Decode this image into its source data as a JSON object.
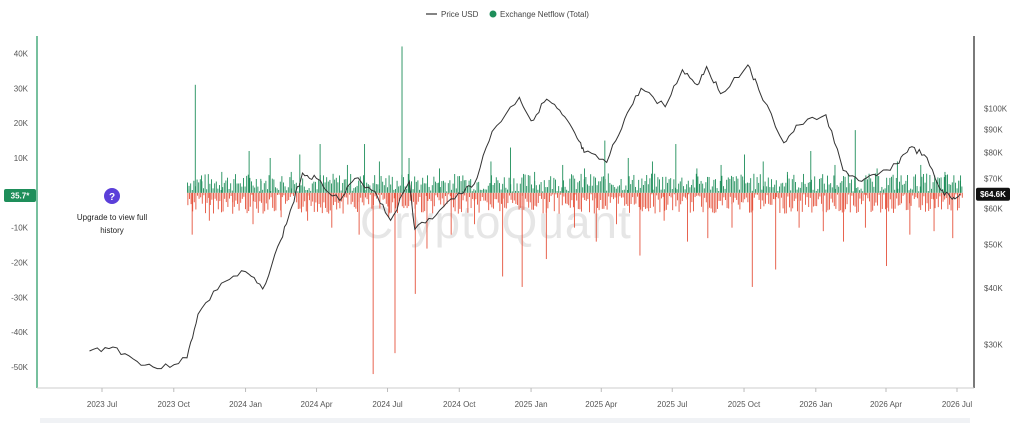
{
  "chart_data": {
    "type": "bar+line",
    "legend": {
      "placement": "top-center",
      "items": [
        {
          "label": "Price USD",
          "color": "#333333",
          "kind": "line"
        },
        {
          "label": "Exchange Netflow (Total)",
          "color": "#1e8e5a",
          "kind": "dot"
        }
      ]
    },
    "x_ticks": [
      "2023 Jul",
      "2023 Oct",
      "2024 Jan",
      "2024 Apr",
      "2024 Jul",
      "2024 Oct",
      "2025 Jan",
      "2025 Apr",
      "2025 Jul",
      "2025 Oct",
      "2026 Jan",
      "2026 Apr",
      "2026 Jul"
    ],
    "left_axis": {
      "ticks": [
        40000,
        30000,
        20000,
        10000,
        0,
        -10000,
        -20000,
        -30000,
        -40000,
        -50000
      ],
      "labels": [
        "40K",
        "30K",
        "20K",
        "10K",
        "",
        "-10K",
        "-20K",
        "-30K",
        "-40K",
        "-50K"
      ],
      "ylim": [
        -56000,
        45000
      ]
    },
    "right_axis": {
      "scale": "log",
      "ticks": [
        100000,
        90000,
        80000,
        70000,
        60000,
        50000,
        40000,
        30000
      ],
      "labels": [
        "$100K",
        "$90K",
        "$80K",
        "$70K",
        "$60K",
        "$50K",
        "$40K",
        "$30K"
      ],
      "ylim": [
        24000,
        145000
      ]
    },
    "current_netflow_badge": "35.7*",
    "current_price_badge": "$64.6K",
    "upgrade_notice": {
      "icon": "question-icon",
      "line1": "Upgrade to view full",
      "line2": "history"
    },
    "watermark": "CryptoQuant",
    "colors": {
      "positive": "#1e8e5a",
      "negative": "#e5533d",
      "price": "#333333",
      "axis": "#2e9e6a"
    },
    "price_series": {
      "x": [
        "2023-06-15",
        "2023-07-15",
        "2023-08-15",
        "2023-09-15",
        "2023-10-18",
        "2023-11-01",
        "2023-12-01",
        "2024-01-01",
        "2024-01-23",
        "2024-02-15",
        "2024-03-01",
        "2024-03-14",
        "2024-04-01",
        "2024-05-01",
        "2024-05-20",
        "2024-06-15",
        "2024-07-05",
        "2024-07-29",
        "2024-08-05",
        "2024-09-01",
        "2024-09-30",
        "2024-10-20",
        "2024-11-12",
        "2024-12-17",
        "2025-01-01",
        "2025-01-21",
        "2025-02-10",
        "2025-03-01",
        "2025-03-10",
        "2025-04-08",
        "2025-05-01",
        "2025-05-22",
        "2025-06-22",
        "2025-07-14",
        "2025-08-02",
        "2025-08-14",
        "2025-09-01",
        "2025-10-06",
        "2025-10-20",
        "2025-11-21",
        "2025-12-10",
        "2026-01-14",
        "2026-02-05",
        "2026-03-01",
        "2026-03-20",
        "2026-04-15",
        "2026-05-01",
        "2026-05-20",
        "2026-06-10",
        "2026-06-25",
        "2026-07-05"
      ],
      "values": [
        29000,
        29600,
        27500,
        26500,
        28000,
        35000,
        41000,
        43500,
        39800,
        51000,
        61000,
        72000,
        70000,
        62500,
        70000,
        65500,
        56500,
        69000,
        54000,
        58000,
        65000,
        68000,
        89000,
        106000,
        94000,
        105000,
        97000,
        86000,
        80000,
        76000,
        95000,
        111000,
        101000,
        122000,
        113000,
        124000,
        108000,
        125000,
        110000,
        84000,
        92000,
        97000,
        73000,
        69000,
        71000,
        75500,
        82000,
        79000,
        66000,
        63000,
        64600
      ]
    },
    "netflow_series": {
      "x": [
        "2023-10-20",
        "2023-10-24",
        "2023-10-28",
        "2023-11-05",
        "2023-11-15",
        "2023-12-01",
        "2023-12-15",
        "2024-01-05",
        "2024-01-10",
        "2024-01-20",
        "2024-02-01",
        "2024-02-15",
        "2024-02-28",
        "2024-03-10",
        "2024-03-20",
        "2024-04-05",
        "2024-04-20",
        "2024-05-10",
        "2024-05-25",
        "2024-06-01",
        "2024-06-12",
        "2024-06-20",
        "2024-07-02",
        "2024-07-10",
        "2024-07-19",
        "2024-07-28",
        "2024-08-05",
        "2024-08-20",
        "2024-09-05",
        "2024-09-20",
        "2024-10-05",
        "2024-10-20",
        "2024-11-10",
        "2024-11-25",
        "2024-12-05",
        "2024-12-20",
        "2025-01-05",
        "2025-01-20",
        "2025-02-10",
        "2025-02-25",
        "2025-03-10",
        "2025-03-25",
        "2025-04-05",
        "2025-04-20",
        "2025-05-05",
        "2025-05-20",
        "2025-06-05",
        "2025-06-20",
        "2025-07-05",
        "2025-07-20",
        "2025-08-01",
        "2025-08-15",
        "2025-09-01",
        "2025-09-15",
        "2025-10-01",
        "2025-10-11",
        "2025-10-25",
        "2025-11-10",
        "2025-11-25",
        "2025-12-10",
        "2025-12-25",
        "2026-01-10",
        "2026-01-25",
        "2026-02-05",
        "2026-02-20",
        "2026-03-05",
        "2026-03-20",
        "2026-04-01",
        "2026-04-15",
        "2026-05-01",
        "2026-05-15",
        "2026-06-01",
        "2026-06-15",
        "2026-06-25",
        "2026-07-05"
      ],
      "values": [
        2000,
        -12000,
        31000,
        5000,
        -8000,
        6000,
        -6000,
        12000,
        -9000,
        4000,
        10000,
        -7000,
        6000,
        11000,
        -8000,
        14000,
        -10000,
        8000,
        -12000,
        14000,
        -52000,
        9000,
        -7000,
        -46000,
        42000,
        10000,
        -29000,
        -16000,
        7000,
        -12000,
        5000,
        -9000,
        9000,
        -24000,
        13000,
        -27000,
        6000,
        -19000,
        8000,
        -10000,
        7000,
        -14000,
        15000,
        -9000,
        10000,
        -18000,
        9000,
        -8000,
        14000,
        -14000,
        7000,
        -13000,
        8000,
        -10000,
        11000,
        -27000,
        9000,
        -22000,
        6000,
        -10000,
        12000,
        -11000,
        8000,
        -14000,
        18000,
        -10000,
        7000,
        -21000,
        9000,
        -12000,
        8000,
        -11000,
        6000,
        -13000,
        5000
      ]
    }
  }
}
